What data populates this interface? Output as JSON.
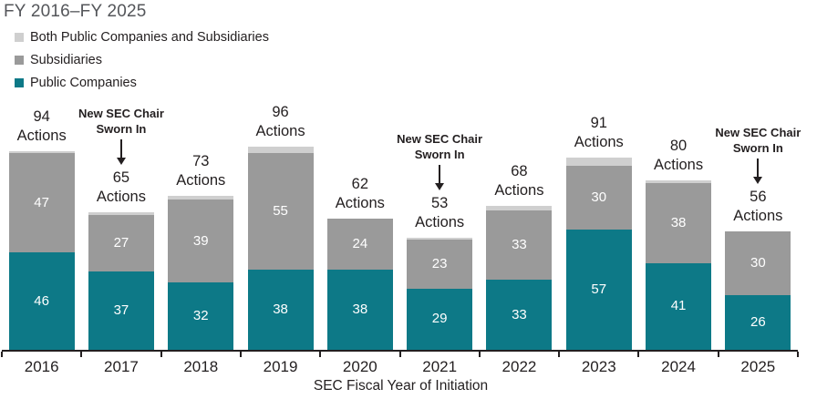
{
  "title": "FY 2016–FY 2025",
  "legend": [
    {
      "label": "Both Public Companies and Subsidiaries",
      "color": "#cfcfcf"
    },
    {
      "label": "Subsidiaries",
      "color": "#9a9a9a"
    },
    {
      "label": "Public Companies",
      "color": "#0d7987"
    }
  ],
  "chart_data": {
    "type": "bar",
    "stacked": true,
    "title": "FY 2016–FY 2025",
    "xlabel": "SEC Fiscal Year of Initiation",
    "ylabel": "",
    "grid": false,
    "legend_position": "top-left",
    "categories": [
      "2016",
      "2017",
      "2018",
      "2019",
      "2020",
      "2021",
      "2022",
      "2023",
      "2024",
      "2025"
    ],
    "series": [
      {
        "name": "Public Companies",
        "color": "#0d7987",
        "show_labels": true,
        "values": [
          46,
          37,
          32,
          38,
          38,
          29,
          33,
          57,
          41,
          26
        ]
      },
      {
        "name": "Subsidiaries",
        "color": "#9a9a9a",
        "show_labels": true,
        "values": [
          47,
          27,
          39,
          55,
          24,
          23,
          33,
          30,
          38,
          30
        ]
      },
      {
        "name": "Both Public Companies and Subsidiaries",
        "color": "#cfcfcf",
        "show_labels": false,
        "values": [
          1,
          1,
          2,
          3,
          0,
          1,
          2,
          4,
          1,
          0
        ]
      }
    ],
    "totals": [
      94,
      65,
      73,
      96,
      62,
      53,
      68,
      91,
      80,
      56
    ],
    "total_label_suffix": "Actions",
    "annotations": [
      {
        "category": "2017",
        "text": "New SEC Chair Sworn In"
      },
      {
        "category": "2021",
        "text": "New SEC Chair Sworn In"
      },
      {
        "category": "2025",
        "text": "New SEC Chair Sworn In"
      }
    ],
    "ylim": [
      0,
      100
    ],
    "colors": {
      "text": "#231f20",
      "title": "#54565a",
      "axis": "#231f20"
    }
  }
}
